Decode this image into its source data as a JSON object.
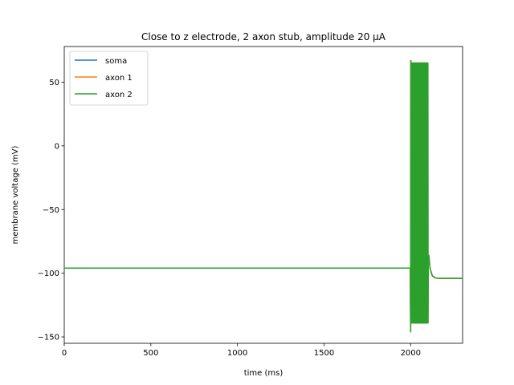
{
  "chart_data": {
    "type": "line",
    "title": "Close to z electrode, 2 axon stub, amplitude 20 µA",
    "xlabel": "time (ms)",
    "ylabel": "membrane voltage (mV)",
    "xlim": [
      0,
      2300
    ],
    "ylim": [
      -155,
      78
    ],
    "xticks": [
      0,
      500,
      1000,
      1500,
      2000
    ],
    "xtick_labels": [
      "0",
      "500",
      "1000",
      "1500",
      "2000"
    ],
    "yticks": [
      -150,
      -100,
      -50,
      0,
      50
    ],
    "ytick_labels": [
      "−150",
      "−100",
      "−50",
      "0",
      "50"
    ],
    "grid": false,
    "legend_position": "top-left",
    "series": [
      {
        "name": "soma",
        "color": "#1f77b4",
        "baseline": -96,
        "stim_start": 2000,
        "stim_end": 2100,
        "spike_peak": 65,
        "spike_trough": -139,
        "initial_dip": -146,
        "final_level": -104
      },
      {
        "name": "axon 1",
        "color": "#ff7f0e",
        "baseline": -96,
        "stim_start": 2000,
        "stim_end": 2100,
        "spike_peak": 65,
        "spike_trough": -139,
        "initial_dip": -146,
        "final_level": -104
      },
      {
        "name": "axon 2",
        "color": "#2ca02c",
        "baseline": -96,
        "stim_start": 2000,
        "stim_end": 2100,
        "spike_peak": 65,
        "spike_trough": -139,
        "initial_dip": -146,
        "final_level": -104
      }
    ]
  }
}
